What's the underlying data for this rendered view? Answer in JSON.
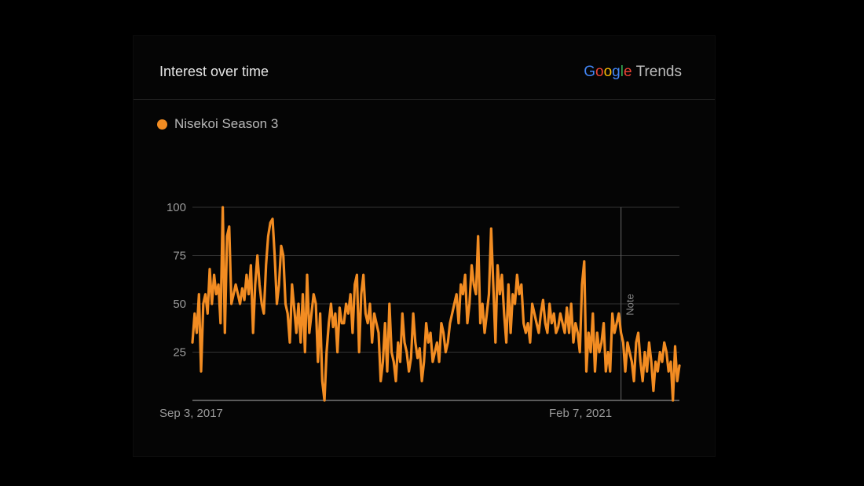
{
  "card": {
    "title": "Interest over time",
    "brand": {
      "google": "Google",
      "trends": "Trends"
    }
  },
  "colors": {
    "series": "#f28c22",
    "grid": "#333333",
    "axis": "#777777",
    "text": "#b8b8b8"
  },
  "chart_data": {
    "type": "line",
    "title": "Interest over time",
    "series": [
      {
        "name": "Nisekoi Season 3",
        "values": [
          30,
          45,
          35,
          55,
          15,
          50,
          55,
          45,
          68,
          50,
          65,
          55,
          60,
          40,
          100,
          35,
          85,
          90,
          50,
          55,
          60,
          55,
          50,
          58,
          52,
          65,
          55,
          70,
          35,
          60,
          75,
          60,
          50,
          45,
          70,
          85,
          92,
          94,
          75,
          50,
          60,
          80,
          75,
          50,
          45,
          30,
          60,
          48,
          35,
          50,
          30,
          55,
          25,
          65,
          35,
          45,
          55,
          50,
          20,
          45,
          10,
          0,
          25,
          40,
          50,
          38,
          45,
          25,
          48,
          40,
          40,
          50,
          45,
          55,
          35,
          60,
          65,
          25,
          55,
          65,
          45,
          40,
          50,
          30,
          45,
          40,
          35,
          10,
          20,
          40,
          15,
          50,
          25,
          20,
          10,
          30,
          20,
          45,
          30,
          25,
          15,
          22,
          45,
          30,
          22,
          27,
          10,
          20,
          40,
          30,
          35,
          20,
          25,
          30,
          20,
          40,
          35,
          25,
          30,
          40,
          45,
          50,
          55,
          40,
          60,
          55,
          65,
          40,
          50,
          70,
          60,
          55,
          85,
          40,
          50,
          35,
          45,
          55,
          89,
          60,
          30,
          70,
          55,
          65,
          45,
          30,
          60,
          35,
          55,
          50,
          65,
          55,
          60,
          40,
          35,
          40,
          30,
          50,
          45,
          40,
          35,
          45,
          52,
          40,
          35,
          50,
          40,
          45,
          35,
          38,
          45,
          40,
          35,
          48,
          35,
          50,
          30,
          40,
          35,
          25,
          60,
          72,
          15,
          35,
          25,
          45,
          15,
          35,
          25,
          30,
          40,
          15,
          25,
          15,
          45,
          35,
          40,
          45,
          35,
          30,
          15,
          30,
          25,
          20,
          10,
          30,
          35,
          20,
          10,
          25,
          15,
          30,
          20,
          5,
          20,
          15,
          25,
          20,
          30,
          25,
          15,
          20,
          0,
          28,
          10,
          18
        ]
      }
    ],
    "x_tick_labels": [
      "Sep 3, 2017",
      "Feb 7, 2021"
    ],
    "x_tick_index": [
      0,
      180
    ],
    "ylim": [
      0,
      100
    ],
    "y_ticks": [
      25,
      50,
      75,
      100
    ],
    "note": {
      "label": "Note",
      "index": 198
    },
    "grid": true,
    "legend": "top-left"
  }
}
